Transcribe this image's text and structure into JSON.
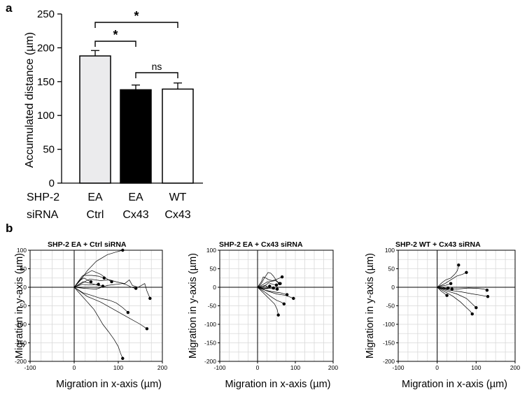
{
  "panel_a": {
    "label": "a",
    "ylabel": "Accumulated distance (µm)",
    "row_labels": [
      "SHP-2",
      "siRNA"
    ],
    "significance": {
      "star": "*",
      "ns": "ns"
    },
    "colors": {
      "fill": [
        "#ebebed",
        "#000000",
        "#ffffff"
      ],
      "stroke": "#000000"
    }
  },
  "panel_b": {
    "label": "b"
  },
  "chart_data": [
    {
      "type": "bar",
      "categories": [
        [
          "EA",
          "Ctrl"
        ],
        [
          "EA",
          "Cx43"
        ],
        [
          "WT",
          "Cx43"
        ]
      ],
      "values": [
        188,
        138,
        139
      ],
      "errors": [
        8,
        7,
        9
      ],
      "ylim": [
        0,
        250
      ],
      "yticks": [
        0,
        50,
        100,
        150,
        200,
        250
      ],
      "ylabel": "Accumulated distance (µm)",
      "comparisons": [
        {
          "from": 0,
          "to": 2,
          "label": "*"
        },
        {
          "from": 0,
          "to": 1,
          "label": "*"
        },
        {
          "from": 1,
          "to": 2,
          "label": "ns"
        }
      ]
    },
    {
      "type": "line",
      "title": "SHP-2 EA + Ctrl siRNA",
      "xlabel": "Migration in x-axis (µm)",
      "ylabel": "Migration in y-axis (µm)",
      "xlim": [
        -100,
        200
      ],
      "ylim": [
        -200,
        100
      ],
      "xticks": [
        -100,
        0,
        100,
        200
      ],
      "yticks": [
        -200,
        -150,
        -100,
        -50,
        0,
        50,
        100
      ],
      "grid": true,
      "tracks": [
        [
          [
            0,
            0
          ],
          [
            15,
            20
          ],
          [
            30,
            45
          ],
          [
            50,
            70
          ],
          [
            75,
            88
          ],
          [
            95,
            95
          ],
          [
            110,
            100
          ]
        ],
        [
          [
            0,
            0
          ],
          [
            18,
            30
          ],
          [
            40,
            45
          ],
          [
            60,
            35
          ],
          [
            75,
            22
          ],
          [
            85,
            15
          ]
        ],
        [
          [
            0,
            0
          ],
          [
            22,
            32
          ],
          [
            40,
            32
          ],
          [
            55,
            30
          ],
          [
            68,
            25
          ]
        ],
        [
          [
            0,
            0
          ],
          [
            12,
            18
          ],
          [
            22,
            25
          ],
          [
            30,
            20
          ],
          [
            38,
            15
          ]
        ],
        [
          [
            0,
            0
          ],
          [
            20,
            15
          ],
          [
            40,
            10
          ],
          [
            55,
            5
          ],
          [
            65,
            3
          ]
        ],
        [
          [
            0,
            0
          ],
          [
            18,
            8
          ],
          [
            32,
            6
          ],
          [
            45,
            7
          ],
          [
            55,
            8
          ]
        ],
        [
          [
            0,
            0
          ],
          [
            35,
            22
          ],
          [
            60,
            18
          ],
          [
            80,
            20
          ],
          [
            95,
            15
          ],
          [
            105,
            12
          ],
          [
            115,
            10
          ],
          [
            125,
            20
          ],
          [
            132,
            5
          ],
          [
            145,
            0
          ],
          [
            160,
            10
          ],
          [
            165,
            -10
          ],
          [
            172,
            -30
          ]
        ],
        [
          [
            0,
            0
          ],
          [
            25,
            -3
          ],
          [
            50,
            -5
          ],
          [
            75,
            5
          ],
          [
            95,
            8
          ],
          [
            110,
            10
          ],
          [
            120,
            6
          ],
          [
            130,
            0
          ],
          [
            140,
            -3
          ]
        ],
        [
          [
            0,
            0
          ],
          [
            20,
            -15
          ],
          [
            40,
            -22
          ],
          [
            60,
            -30
          ],
          [
            80,
            -35
          ],
          [
            95,
            -42
          ],
          [
            110,
            -55
          ],
          [
            122,
            -68
          ]
        ],
        [
          [
            0,
            0
          ],
          [
            30,
            -25
          ],
          [
            60,
            -40
          ],
          [
            90,
            -60
          ],
          [
            120,
            -80
          ],
          [
            150,
            -100
          ],
          [
            165,
            -112
          ]
        ],
        [
          [
            0,
            0
          ],
          [
            15,
            -20
          ],
          [
            30,
            -40
          ],
          [
            45,
            -60
          ],
          [
            55,
            -80
          ],
          [
            65,
            -100
          ],
          [
            78,
            -120
          ],
          [
            90,
            -140
          ],
          [
            100,
            -160
          ],
          [
            105,
            -178
          ],
          [
            110,
            -192
          ]
        ]
      ]
    },
    {
      "type": "line",
      "title": "SHP-2 EA + Cx43 siRNA",
      "xlabel": "Migration in x-axis (µm)",
      "ylabel": "Migration in y-axis (µm)",
      "xlim": [
        -100,
        200
      ],
      "ylim": [
        -200,
        100
      ],
      "xticks": [
        -100,
        0,
        100,
        200
      ],
      "yticks": [
        -200,
        -150,
        -100,
        -50,
        0,
        50,
        100
      ],
      "grid": true,
      "tracks": [
        [
          [
            0,
            0
          ],
          [
            10,
            15
          ],
          [
            15,
            28
          ],
          [
            22,
            25
          ],
          [
            30,
            20
          ],
          [
            40,
            18
          ],
          [
            52,
            22
          ],
          [
            65,
            28
          ]
        ],
        [
          [
            0,
            0
          ],
          [
            10,
            10
          ],
          [
            18,
            25
          ],
          [
            28,
            40
          ],
          [
            35,
            38
          ],
          [
            42,
            30
          ],
          [
            50,
            18
          ],
          [
            58,
            10
          ]
        ],
        [
          [
            0,
            0
          ],
          [
            15,
            8
          ],
          [
            25,
            14
          ],
          [
            35,
            16
          ],
          [
            48,
            18
          ],
          [
            55,
            12
          ],
          [
            60,
            10
          ]
        ],
        [
          [
            0,
            0
          ],
          [
            20,
            5
          ],
          [
            30,
            12
          ],
          [
            40,
            8
          ],
          [
            50,
            6
          ]
        ],
        [
          [
            0,
            0
          ],
          [
            12,
            -2
          ],
          [
            20,
            5
          ],
          [
            28,
            0
          ],
          [
            32,
            3
          ]
        ],
        [
          [
            0,
            0
          ],
          [
            15,
            -5
          ],
          [
            28,
            -3
          ],
          [
            35,
            0
          ],
          [
            42,
            -2
          ]
        ],
        [
          [
            0,
            0
          ],
          [
            15,
            -3
          ],
          [
            28,
            -2
          ],
          [
            40,
            -4
          ],
          [
            52,
            -5
          ]
        ],
        [
          [
            0,
            0
          ],
          [
            20,
            -8
          ],
          [
            40,
            -12
          ],
          [
            60,
            -15
          ],
          [
            78,
            -20
          ]
        ],
        [
          [
            0,
            0
          ],
          [
            25,
            -10
          ],
          [
            50,
            -18
          ],
          [
            75,
            -22
          ],
          [
            95,
            -30
          ]
        ],
        [
          [
            0,
            0
          ],
          [
            18,
            -12
          ],
          [
            35,
            -25
          ],
          [
            50,
            -35
          ],
          [
            62,
            -40
          ],
          [
            70,
            -45
          ]
        ],
        [
          [
            0,
            0
          ],
          [
            15,
            -15
          ],
          [
            30,
            -30
          ],
          [
            45,
            -45
          ],
          [
            52,
            -60
          ],
          [
            55,
            -75
          ]
        ]
      ]
    },
    {
      "type": "line",
      "title": "SHP-2 WT + Cx43 siRNA",
      "xlabel": "Migration in x-axis (µm)",
      "ylabel": "Migration in y-axis (µm)",
      "xlim": [
        -100,
        200
      ],
      "ylim": [
        -200,
        100
      ],
      "xticks": [
        -100,
        0,
        100,
        200
      ],
      "yticks": [
        -200,
        -150,
        -100,
        -50,
        0,
        50,
        100
      ],
      "grid": true,
      "tracks": [
        [
          [
            0,
            0
          ],
          [
            12,
            12
          ],
          [
            22,
            20
          ],
          [
            35,
            25
          ],
          [
            45,
            35
          ],
          [
            52,
            45
          ],
          [
            55,
            60
          ]
        ],
        [
          [
            0,
            0
          ],
          [
            20,
            10
          ],
          [
            35,
            20
          ],
          [
            50,
            30
          ],
          [
            65,
            35
          ],
          [
            75,
            40
          ]
        ],
        [
          [
            0,
            0
          ],
          [
            10,
            3
          ],
          [
            20,
            5
          ],
          [
            30,
            8
          ],
          [
            35,
            10
          ]
        ],
        [
          [
            0,
            0
          ],
          [
            12,
            0
          ],
          [
            22,
            -3
          ],
          [
            28,
            -2
          ]
        ],
        [
          [
            0,
            0
          ],
          [
            18,
            -3
          ],
          [
            30,
            -5
          ],
          [
            38,
            -5
          ]
        ],
        [
          [
            0,
            0
          ],
          [
            25,
            -5
          ],
          [
            50,
            -5
          ],
          [
            80,
            -2
          ],
          [
            105,
            -3
          ],
          [
            120,
            -5
          ],
          [
            128,
            -8
          ]
        ],
        [
          [
            0,
            0
          ],
          [
            30,
            -8
          ],
          [
            60,
            -12
          ],
          [
            90,
            -18
          ],
          [
            115,
            -22
          ],
          [
            130,
            -25
          ]
        ],
        [
          [
            0,
            0
          ],
          [
            25,
            -10
          ],
          [
            50,
            -18
          ],
          [
            75,
            -30
          ],
          [
            90,
            -45
          ],
          [
            100,
            -55
          ]
        ],
        [
          [
            0,
            0
          ],
          [
            20,
            -12
          ],
          [
            40,
            -24
          ],
          [
            60,
            -40
          ],
          [
            75,
            -55
          ],
          [
            85,
            -65
          ],
          [
            90,
            -72
          ]
        ],
        [
          [
            0,
            0
          ],
          [
            10,
            -10
          ],
          [
            20,
            -18
          ],
          [
            25,
            -22
          ]
        ]
      ]
    }
  ]
}
